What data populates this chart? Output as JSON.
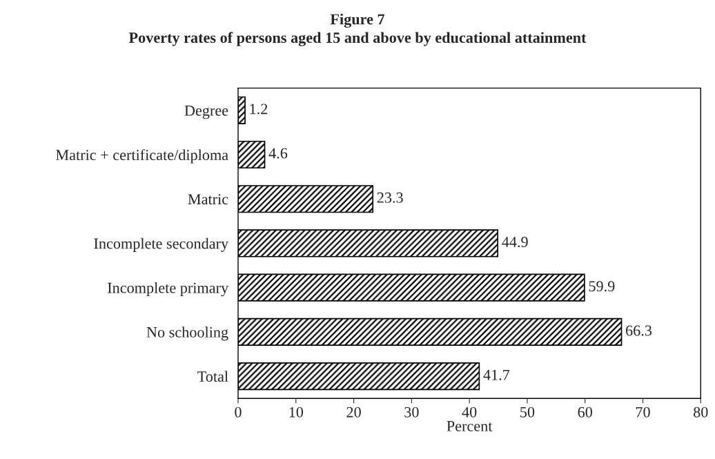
{
  "chart_data": {
    "type": "bar",
    "orientation": "horizontal",
    "title": "Figure 7",
    "subtitle": "Poverty rates of persons aged 15 and above by educational attainment",
    "categories": [
      "Degree",
      "Matric + certificate/diploma",
      "Matric",
      "Incomplete secondary",
      "Incomplete primary",
      "No schooling",
      "Total"
    ],
    "values": [
      1.2,
      4.6,
      23.3,
      44.9,
      59.9,
      66.3,
      41.7
    ],
    "color": "#000000",
    "xlim": [
      0,
      80
    ],
    "xticks": [
      0,
      10,
      20,
      30,
      40,
      50,
      60,
      70,
      80
    ],
    "xlabel": "Percent",
    "data_labels": true,
    "grid": false
  }
}
